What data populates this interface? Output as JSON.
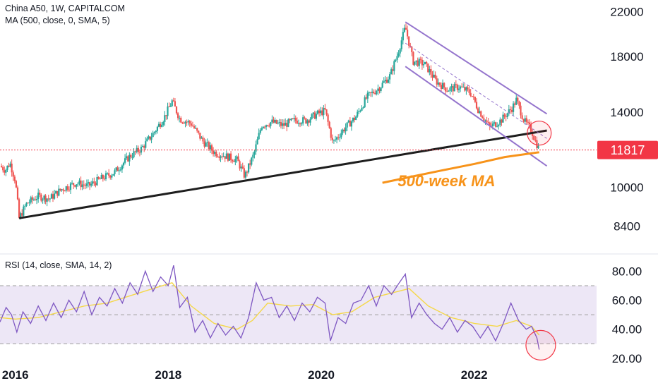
{
  "header": {
    "symbol_line": "China A50, 1W, CAPITALCOM",
    "ma_line": "MA (500, close, 0, SMA, 5)",
    "rsi_line": "RSI (14, close, SMA, 14, 2)"
  },
  "colors": {
    "up": "#26a69a",
    "down": "#ef5350",
    "trendline": "#1e1e1e",
    "channel": "#9575cd",
    "ma500": "#f7931a",
    "rsi_line": "#7e57c2",
    "rsi_ma": "#f5d84a",
    "rsi_band": "#ede7f6",
    "price_tag": "#f23645",
    "circle": "#f23645"
  },
  "chart_data": [
    {
      "type": "candlestick",
      "title": "China A50, 1W, CAPITALCOM",
      "y_ticks": [
        22000,
        18000,
        14000,
        10000,
        8400
      ],
      "y_range": [
        7600,
        22600
      ],
      "x_ticks": [
        "2016",
        "2018",
        "2020",
        "2022"
      ],
      "x_range": [
        2015.8,
        2023.6
      ],
      "current_price": 11817,
      "current_price_label": "11817",
      "annotation": "500-week MA",
      "close_series": [
        [
          2015.8,
          11000
        ],
        [
          2015.87,
          10800
        ],
        [
          2015.93,
          11150
        ],
        [
          2016.0,
          10300
        ],
        [
          2016.05,
          8700
        ],
        [
          2016.15,
          9300
        ],
        [
          2016.3,
          9600
        ],
        [
          2016.45,
          9500
        ],
        [
          2016.6,
          9900
        ],
        [
          2016.8,
          10200
        ],
        [
          2016.95,
          10050
        ],
        [
          2017.1,
          10350
        ],
        [
          2017.3,
          10700
        ],
        [
          2017.5,
          11500
        ],
        [
          2017.65,
          11900
        ],
        [
          2017.8,
          12700
        ],
        [
          2017.95,
          13700
        ],
        [
          2018.05,
          14700
        ],
        [
          2018.15,
          13600
        ],
        [
          2018.3,
          13300
        ],
        [
          2018.45,
          12300
        ],
        [
          2018.6,
          11700
        ],
        [
          2018.75,
          11500
        ],
        [
          2018.9,
          11300
        ],
        [
          2019.0,
          10500
        ],
        [
          2019.12,
          11600
        ],
        [
          2019.22,
          13200
        ],
        [
          2019.35,
          13400
        ],
        [
          2019.5,
          13200
        ],
        [
          2019.65,
          13500
        ],
        [
          2019.8,
          13500
        ],
        [
          2019.95,
          13900
        ],
        [
          2020.05,
          14100
        ],
        [
          2020.15,
          12200
        ],
        [
          2020.3,
          13000
        ],
        [
          2020.45,
          13700
        ],
        [
          2020.6,
          15000
        ],
        [
          2020.75,
          15600
        ],
        [
          2020.9,
          16500
        ],
        [
          2021.0,
          18200
        ],
        [
          2021.1,
          20500
        ],
        [
          2021.2,
          17600
        ],
        [
          2021.35,
          17400
        ],
        [
          2021.5,
          16100
        ],
        [
          2021.65,
          15500
        ],
        [
          2021.8,
          15700
        ],
        [
          2021.95,
          15300
        ],
        [
          2022.05,
          14200
        ],
        [
          2022.2,
          13100
        ],
        [
          2022.35,
          13500
        ],
        [
          2022.5,
          14300
        ],
        [
          2022.55,
          14800
        ],
        [
          2022.65,
          13500
        ],
        [
          2022.75,
          12900
        ],
        [
          2022.8,
          12300
        ],
        [
          2022.85,
          11817
        ]
      ],
      "support_line": [
        [
          2016.05,
          8700
        ],
        [
          2022.95,
          12900
        ]
      ],
      "channel_upper": [
        [
          2021.1,
          21000
        ],
        [
          2022.95,
          13900
        ]
      ],
      "channel_lower": [
        [
          2021.1,
          17200
        ],
        [
          2022.95,
          11000
        ]
      ],
      "ma500": [
        [
          2020.8,
          10200
        ],
        [
          2021.2,
          10500
        ],
        [
          2021.6,
          10800
        ],
        [
          2022.0,
          11100
        ],
        [
          2022.4,
          11450
        ],
        [
          2022.85,
          11700
        ]
      ]
    },
    {
      "type": "line",
      "title": "RSI (14, close, SMA, 14, 2)",
      "y_ticks": [
        "80.00",
        "60.00",
        "40.00",
        "20.00"
      ],
      "y_range": [
        18,
        86
      ],
      "bands": [
        30,
        50,
        70
      ],
      "series": [
        {
          "name": "RSI",
          "values": [
            [
              2015.8,
              45
            ],
            [
              2015.88,
              55
            ],
            [
              2015.95,
              50
            ],
            [
              2016.02,
              38
            ],
            [
              2016.1,
              52
            ],
            [
              2016.2,
              44
            ],
            [
              2016.3,
              56
            ],
            [
              2016.4,
              46
            ],
            [
              2016.5,
              58
            ],
            [
              2016.6,
              48
            ],
            [
              2016.7,
              60
            ],
            [
              2016.8,
              52
            ],
            [
              2016.9,
              66
            ],
            [
              2017.0,
              50
            ],
            [
              2017.1,
              62
            ],
            [
              2017.2,
              56
            ],
            [
              2017.3,
              68
            ],
            [
              2017.4,
              58
            ],
            [
              2017.5,
              72
            ],
            [
              2017.6,
              64
            ],
            [
              2017.7,
              80
            ],
            [
              2017.8,
              66
            ],
            [
              2017.9,
              76
            ],
            [
              2018.0,
              70
            ],
            [
              2018.07,
              84
            ],
            [
              2018.15,
              55
            ],
            [
              2018.25,
              62
            ],
            [
              2018.35,
              38
            ],
            [
              2018.45,
              46
            ],
            [
              2018.55,
              34
            ],
            [
              2018.65,
              44
            ],
            [
              2018.75,
              36
            ],
            [
              2018.85,
              42
            ],
            [
              2018.95,
              34
            ],
            [
              2019.05,
              48
            ],
            [
              2019.15,
              72
            ],
            [
              2019.25,
              60
            ],
            [
              2019.35,
              62
            ],
            [
              2019.45,
              48
            ],
            [
              2019.55,
              56
            ],
            [
              2019.65,
              46
            ],
            [
              2019.75,
              58
            ],
            [
              2019.85,
              52
            ],
            [
              2019.95,
              62
            ],
            [
              2020.05,
              58
            ],
            [
              2020.12,
              32
            ],
            [
              2020.22,
              48
            ],
            [
              2020.32,
              44
            ],
            [
              2020.42,
              58
            ],
            [
              2020.52,
              60
            ],
            [
              2020.62,
              70
            ],
            [
              2020.72,
              56
            ],
            [
              2020.82,
              70
            ],
            [
              2020.92,
              64
            ],
            [
              2021.02,
              72
            ],
            [
              2021.1,
              78
            ],
            [
              2021.18,
              48
            ],
            [
              2021.28,
              58
            ],
            [
              2021.38,
              50
            ],
            [
              2021.48,
              44
            ],
            [
              2021.58,
              40
            ],
            [
              2021.68,
              48
            ],
            [
              2021.78,
              38
            ],
            [
              2021.88,
              46
            ],
            [
              2021.98,
              42
            ],
            [
              2022.08,
              34
            ],
            [
              2022.18,
              42
            ],
            [
              2022.28,
              32
            ],
            [
              2022.38,
              44
            ],
            [
              2022.48,
              58
            ],
            [
              2022.58,
              46
            ],
            [
              2022.68,
              40
            ],
            [
              2022.75,
              42
            ],
            [
              2022.82,
              34
            ],
            [
              2022.85,
              26
            ]
          ]
        },
        {
          "name": "RSI-based MA",
          "values": [
            [
              2015.8,
              48
            ],
            [
              2016.0,
              47
            ],
            [
              2016.3,
              48
            ],
            [
              2016.6,
              52
            ],
            [
              2016.9,
              56
            ],
            [
              2017.2,
              58
            ],
            [
              2017.5,
              63
            ],
            [
              2017.8,
              68
            ],
            [
              2018.05,
              72
            ],
            [
              2018.3,
              56
            ],
            [
              2018.6,
              44
            ],
            [
              2018.9,
              40
            ],
            [
              2019.1,
              46
            ],
            [
              2019.3,
              58
            ],
            [
              2019.6,
              56
            ],
            [
              2019.9,
              57
            ],
            [
              2020.15,
              50
            ],
            [
              2020.4,
              52
            ],
            [
              2020.7,
              62
            ],
            [
              2021.0,
              66
            ],
            [
              2021.15,
              68
            ],
            [
              2021.4,
              56
            ],
            [
              2021.7,
              48
            ],
            [
              2022.0,
              44
            ],
            [
              2022.3,
              42
            ],
            [
              2022.55,
              46
            ],
            [
              2022.75,
              42
            ],
            [
              2022.85,
              36
            ]
          ]
        }
      ]
    }
  ]
}
